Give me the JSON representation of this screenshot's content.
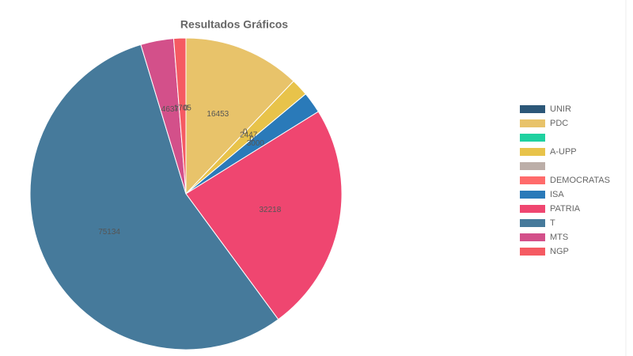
{
  "chart_data": {
    "type": "pie",
    "title": "Resultados Gráficos",
    "categories": [
      "UNIR",
      "PDC",
      null,
      "A-UPP",
      null,
      "DEMOCRATAS",
      "ISA",
      "PATRIA",
      "T",
      "MTS",
      "NGP"
    ],
    "values": [
      0,
      16453,
      0,
      2447,
      0,
      0,
      3000,
      32218,
      75134,
      4637,
      1705
    ],
    "colors": [
      "#2c5778",
      "#e8c36a",
      "#1fd1a0",
      "#e8c34a",
      "#bcaea8",
      "#ff6b6b",
      "#2a7ab9",
      "#ef4670",
      "#467a9b",
      "#d3508a",
      "#f55a62"
    ],
    "legend": "right"
  }
}
